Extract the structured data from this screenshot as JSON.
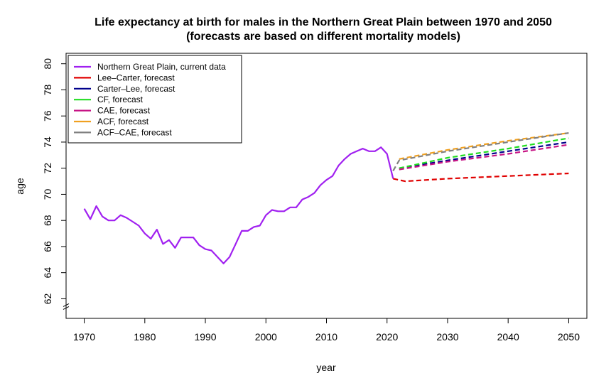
{
  "chart_data": {
    "type": "line",
    "title_line1": "Life expectancy at birth for males in the Northern Great Plain between 1970 and 2050",
    "title_line2": "(forecasts are based on different mortality models)",
    "xlabel": "year",
    "ylabel": "age",
    "xlim": [
      1967,
      2053
    ],
    "ylim": [
      60.5,
      80.8
    ],
    "x_ticks": [
      1970,
      1980,
      1990,
      2000,
      2010,
      2020,
      2030,
      2040,
      2050
    ],
    "y_ticks": [
      62,
      64,
      66,
      68,
      70,
      72,
      74,
      76,
      78,
      80
    ],
    "axis_break": true,
    "legend_position": "top-left",
    "series": [
      {
        "name": "Northern Great Plain, current data",
        "color": "#a020f0",
        "style": "solid",
        "x": [
          1970,
          1971,
          1972,
          1973,
          1974,
          1975,
          1976,
          1977,
          1978,
          1979,
          1980,
          1981,
          1982,
          1983,
          1984,
          1985,
          1986,
          1987,
          1988,
          1989,
          1990,
          1991,
          1992,
          1993,
          1994,
          1995,
          1996,
          1997,
          1998,
          1999,
          2000,
          2001,
          2002,
          2003,
          2004,
          2005,
          2006,
          2007,
          2008,
          2009,
          2010,
          2011,
          2012,
          2013,
          2014,
          2015,
          2016,
          2017,
          2018,
          2019,
          2020,
          2021
        ],
        "y": [
          68.9,
          68.1,
          69.1,
          68.3,
          68.0,
          68.0,
          68.4,
          68.2,
          67.9,
          67.6,
          67.0,
          66.6,
          67.3,
          66.2,
          66.5,
          65.9,
          66.7,
          66.7,
          66.7,
          66.1,
          65.8,
          65.7,
          65.2,
          64.7,
          65.2,
          66.2,
          67.2,
          67.2,
          67.5,
          67.6,
          68.4,
          68.8,
          68.7,
          68.7,
          69.0,
          69.0,
          69.6,
          69.8,
          70.1,
          70.7,
          71.1,
          71.4,
          72.2,
          72.7,
          73.1,
          73.3,
          73.5,
          73.3,
          73.3,
          73.6,
          73.1,
          71.2
        ]
      },
      {
        "name": "Lee–Carter, forecast",
        "color": "#e00000",
        "style": "dashed",
        "x": [
          2021,
          2023,
          2030,
          2040,
          2050
        ],
        "y": [
          71.2,
          71.0,
          71.2,
          71.4,
          71.6
        ]
      },
      {
        "name": "Carter–Lee, forecast",
        "color": "#00008b",
        "style": "dashed",
        "x": [
          2022,
          2030,
          2040,
          2050
        ],
        "y": [
          72.0,
          72.6,
          73.3,
          74.0
        ]
      },
      {
        "name": "CF, forecast",
        "color": "#22dd22",
        "style": "dashed",
        "x": [
          2022,
          2030,
          2040,
          2050
        ],
        "y": [
          72.0,
          72.8,
          73.5,
          74.3
        ]
      },
      {
        "name": "CAE, forecast",
        "color": "#c71585",
        "style": "dashed",
        "x": [
          2022,
          2030,
          2040,
          2050
        ],
        "y": [
          71.9,
          72.5,
          73.1,
          73.8
        ]
      },
      {
        "name": "ACF, forecast",
        "color": "#f0a020",
        "style": "dashed",
        "x": [
          2022,
          2030,
          2040,
          2050
        ],
        "y": [
          72.7,
          73.4,
          74.1,
          74.7
        ]
      },
      {
        "name": "ACF–CAE, forecast",
        "color": "#808080",
        "style": "dashed",
        "x": [
          2021,
          2022,
          2030,
          2040,
          2050
        ],
        "y": [
          71.8,
          72.6,
          73.3,
          74.0,
          74.7
        ]
      }
    ]
  }
}
